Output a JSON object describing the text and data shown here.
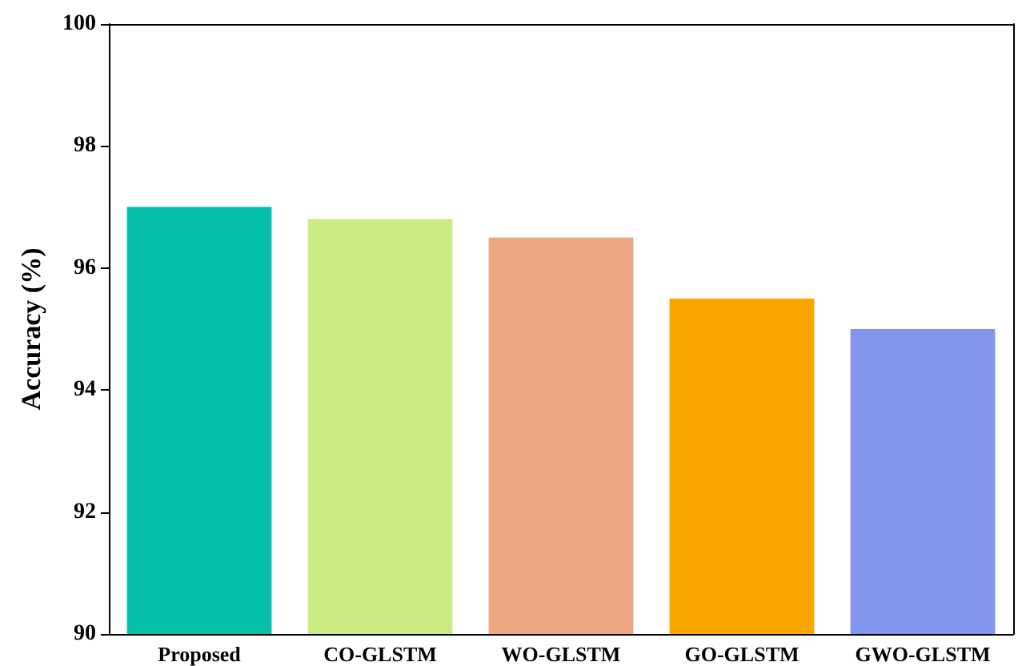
{
  "chart_data": {
    "type": "bar",
    "ylabel": "Accuracy (%)",
    "categories": [
      "Proposed",
      "CO-GLSTM",
      "WO-GLSTM",
      "GO-GLSTM",
      "GWO-GLSTM"
    ],
    "values": [
      97,
      96.8,
      96.5,
      95.5,
      95
    ],
    "colors": [
      "#06c0ab",
      "#cbec84",
      "#eda783",
      "#fba600",
      "#8495ee"
    ],
    "ylim": [
      90,
      100
    ],
    "yticks": [
      90,
      92,
      94,
      96,
      98,
      100
    ],
    "grid": false
  }
}
